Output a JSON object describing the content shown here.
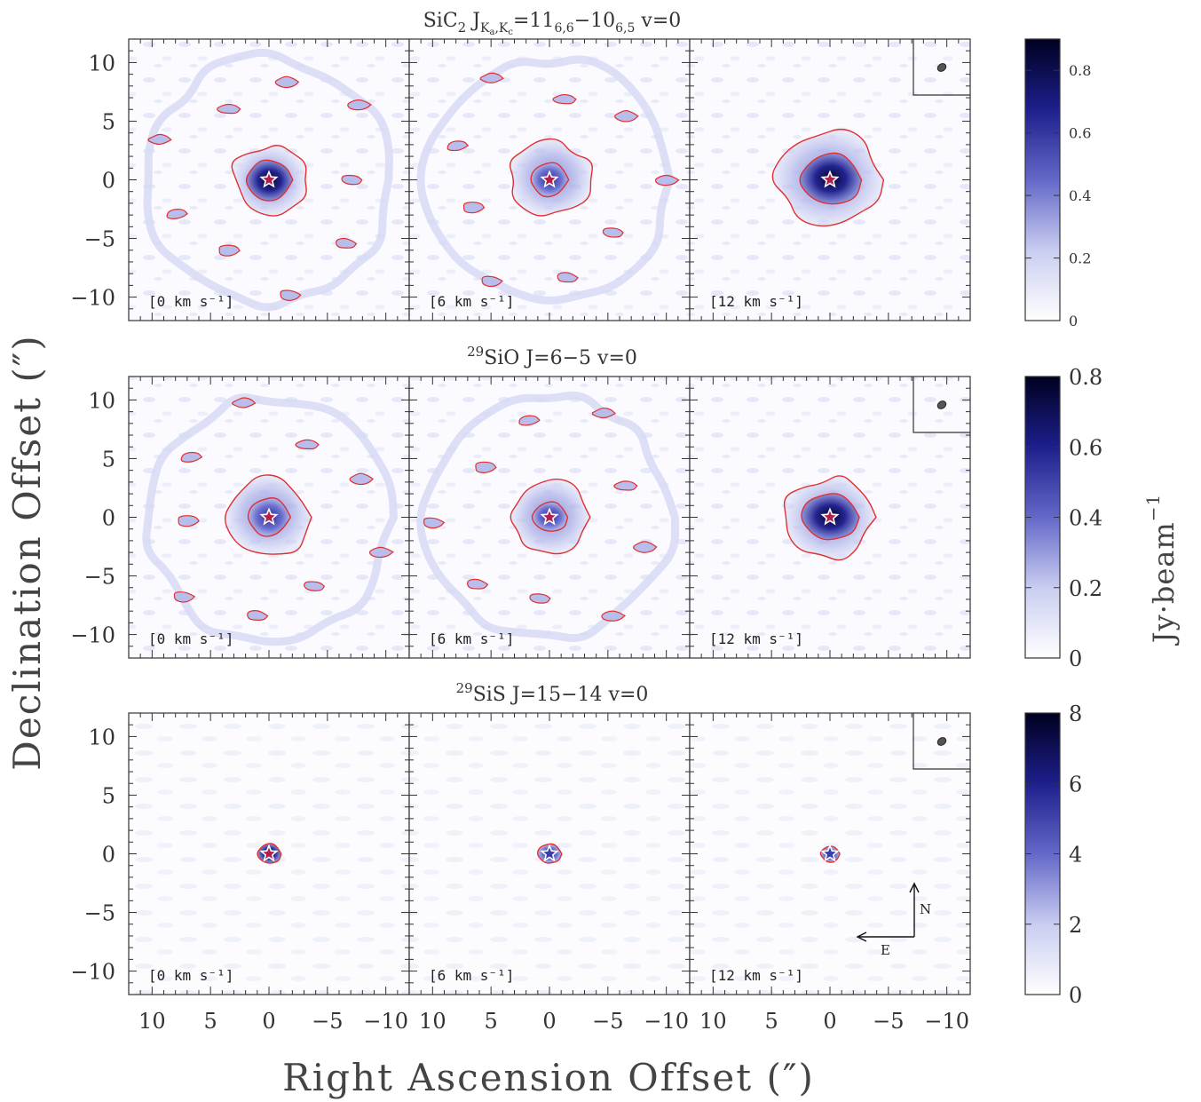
{
  "chart_data": {
    "type": "heatmap",
    "description_type": "channel maps",
    "xlabel": "Right Ascension Offset (″)",
    "ylabel": "Declination Offset (″)",
    "colorbar_label": "Jy·beam",
    "colorbar_label_exponent": "−1",
    "xlim": [
      12,
      -12
    ],
    "ylim": [
      -12,
      12
    ],
    "x_ticks": [
      "10",
      "5",
      "0",
      "−5",
      "−10"
    ],
    "y_ticks": [
      "10",
      "5",
      "0",
      "−5",
      "−10"
    ],
    "x_tick_values": [
      10,
      5,
      0,
      -5,
      -10
    ],
    "y_tick_values": [
      10,
      5,
      0,
      -5,
      -10
    ],
    "channels": [
      "[0 km s⁻¹]",
      "[6 km s⁻¹]",
      "[12 km s⁻¹]"
    ],
    "colormap": [
      "#ffffff",
      "#c9cdf0",
      "#6468c8",
      "#1d1f8c",
      "#000020"
    ],
    "contour_color": "#e03030",
    "star_marker_color": "#ffffff",
    "compass": {
      "north": "N",
      "east": "E"
    },
    "rows": [
      {
        "title_main": "SiC",
        "title_sub1": "2",
        "title_mid": " J",
        "title_sub2": "K",
        "title_sub2a": "a",
        "title_sub2b": ",K",
        "title_sub2c": "c",
        "title_rest": "=11",
        "title_sub3": "6,6",
        "title_rest2": "−10",
        "title_sub4": "6,5",
        "title_rest3": "  v=0",
        "colorbar_ticks": [
          "0",
          "0.2",
          "0.4",
          "0.6",
          "0.8"
        ],
        "colorbar_tick_values": [
          0,
          0.2,
          0.4,
          0.6,
          0.8
        ],
        "colorbar_max": 0.9,
        "peak_values": [
          0.85,
          0.55,
          0.75
        ]
      },
      {
        "title_sup": "29",
        "title_text": "SiO  J=6−5  v=0",
        "colorbar_ticks": [
          "0",
          "0.2",
          "0.4",
          "0.6",
          "0.8"
        ],
        "colorbar_tick_values": [
          0,
          0.2,
          0.4,
          0.6,
          0.8
        ],
        "colorbar_max": 0.8,
        "peak_values": [
          0.7,
          0.55,
          0.75
        ]
      },
      {
        "title_sup": "29",
        "title_text": "SiS  J=15−14  v=0",
        "colorbar_ticks": [
          "0",
          "2",
          "4",
          "6",
          "8"
        ],
        "colorbar_tick_values": [
          0,
          2,
          4,
          6,
          8
        ],
        "colorbar_max": 8,
        "peak_values": [
          7.5,
          5.0,
          2.0
        ]
      }
    ]
  }
}
